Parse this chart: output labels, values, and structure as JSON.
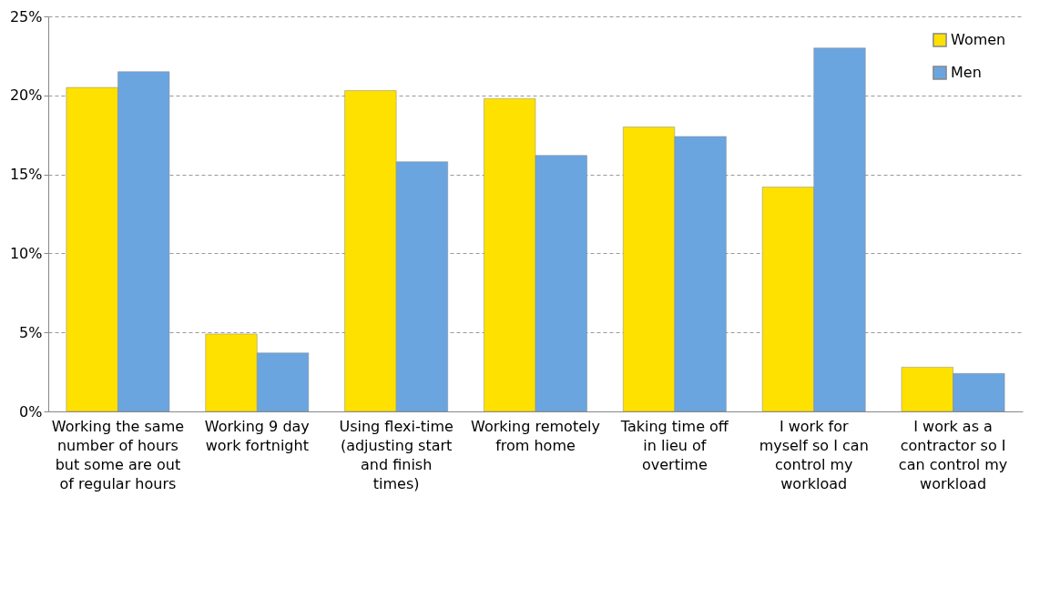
{
  "chart_data": {
    "type": "bar",
    "categories": [
      "Working the same number of hours but some are out of regular hours",
      "Working 9 day work fortnight",
      "Using flexi-time (adjusting start and finish times)",
      "Working remotely from home",
      "Taking time off in lieu of overtime",
      "I work for myself so I can control my workload",
      "I work as a contractor so I can control my workload"
    ],
    "series": [
      {
        "name": "Women",
        "color": "#ffe100",
        "values": [
          20.5,
          4.9,
          20.3,
          19.8,
          18.0,
          14.2,
          2.8
        ]
      },
      {
        "name": "Men",
        "color": "#6aa5e0",
        "values": [
          21.5,
          3.7,
          15.8,
          16.2,
          17.4,
          23.0,
          2.4
        ]
      }
    ],
    "ylim": [
      0,
      25
    ],
    "yticks": [
      {
        "value": 0,
        "label": "0%"
      },
      {
        "value": 5,
        "label": "5%"
      },
      {
        "value": 10,
        "label": "10%"
      },
      {
        "value": 15,
        "label": "15%"
      },
      {
        "value": 20,
        "label": "20%"
      },
      {
        "value": 25,
        "label": "25%"
      }
    ],
    "grid": "y",
    "legend": "top right"
  }
}
